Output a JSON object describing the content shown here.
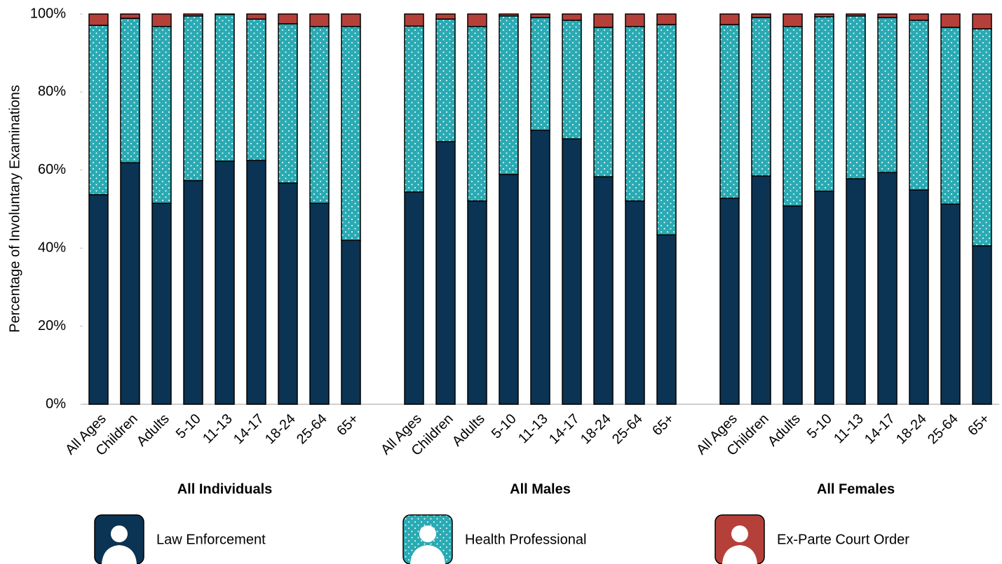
{
  "chart_data": {
    "type": "stacked_bar",
    "y_label": "Percentage of Involuntary Examinations",
    "group_labels": [
      "All Individuals",
      "All Males",
      "All Females"
    ],
    "categories": [
      "All Ages",
      "Children",
      "Adults",
      "5-10",
      "11-13",
      "14-17",
      "18-24",
      "25-64",
      "65+",
      "All Ages",
      "Children",
      "Adults",
      "5-10",
      "11-13",
      "14-17",
      "18-24",
      "25-64",
      "65+",
      "All Ages",
      "Children",
      "Adults",
      "5-10",
      "11-13",
      "14-17",
      "18-24",
      "25-64",
      "65+"
    ],
    "series": [
      {
        "name": "Law Enforcement",
        "color": "#0b3353",
        "values": [
          53.7,
          61.9,
          51.5,
          57.3,
          62.3,
          62.5,
          56.7,
          51.5,
          42.0,
          54.4,
          67.3,
          52.1,
          58.9,
          70.2,
          68.0,
          58.3,
          52.1,
          43.4,
          52.8,
          58.5,
          50.8,
          54.6,
          57.8,
          59.4,
          54.9,
          51.3,
          40.6
        ]
      },
      {
        "name": "Health Professional",
        "color": "#2aaab3",
        "pattern": "dots",
        "values": [
          43.4,
          37.0,
          45.3,
          42.2,
          37.6,
          36.2,
          40.8,
          45.3,
          54.8,
          42.5,
          31.4,
          44.7,
          40.6,
          28.9,
          30.4,
          38.3,
          44.7,
          53.9,
          44.5,
          40.6,
          46.0,
          44.7,
          41.7,
          39.7,
          43.5,
          45.3,
          55.6
        ]
      },
      {
        "name": "Ex-Parte Court Order",
        "color": "#b5403a",
        "values": [
          2.9,
          1.1,
          3.2,
          0.5,
          0.1,
          1.3,
          2.5,
          3.2,
          3.2,
          3.1,
          1.3,
          3.2,
          0.5,
          0.9,
          1.6,
          3.4,
          3.2,
          2.7,
          2.7,
          0.9,
          3.2,
          0.7,
          0.5,
          0.9,
          1.6,
          3.4,
          3.8
        ]
      }
    ],
    "ylim": [
      0,
      100
    ],
    "yticks": [
      {
        "value": 0,
        "label": "0%"
      },
      {
        "value": 20,
        "label": "20%"
      },
      {
        "value": 40,
        "label": "40%"
      },
      {
        "value": 60,
        "label": "60%"
      },
      {
        "value": 80,
        "label": "80%"
      },
      {
        "value": 100,
        "label": "100%"
      }
    ]
  }
}
